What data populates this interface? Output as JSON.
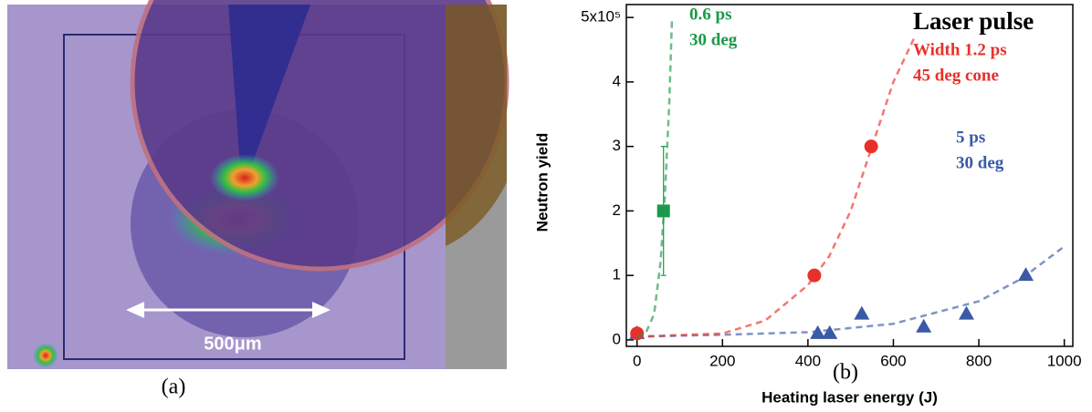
{
  "panel_a": {
    "scale_label": "500μm",
    "caption": "(a)"
  },
  "chart_data": {
    "type": "scatter",
    "title": "Laser pulse",
    "panel_label": "(b)",
    "x_label": "Heating laser energy (J)",
    "y_label": "Neutron yield",
    "xlim": [
      -25,
      1020
    ],
    "ylim": [
      -0.1,
      5.2
    ],
    "xticks": [
      0,
      200,
      400,
      600,
      800,
      1000
    ],
    "yticks": [
      0,
      1,
      2,
      3,
      4,
      {
        "value": 5,
        "label": "5x10⁵"
      }
    ],
    "series": [
      {
        "label": [
          "0.6 ps",
          "30 deg"
        ],
        "color": "#1a9a4a",
        "marker": "square",
        "x": [
          62
        ],
        "values": [
          2
        ],
        "errors": [
          1
        ],
        "fit_x": [
          0,
          20,
          40,
          55,
          65,
          75,
          82
        ],
        "fit_values": [
          0.05,
          0.1,
          0.4,
          1.2,
          2.2,
          3.6,
          5.0
        ]
      },
      {
        "label": [
          "Width 1.2 ps",
          "45 deg cone"
        ],
        "color": "#e8302a",
        "marker": "circle",
        "x": [
          0,
          415,
          548
        ],
        "values": [
          0.1,
          1.0,
          3.0
        ],
        "fit_x": [
          0,
          200,
          300,
          400,
          450,
          500,
          550,
          600,
          650
        ],
        "fit_values": [
          0.05,
          0.1,
          0.3,
          0.85,
          1.3,
          2.0,
          3.0,
          4.0,
          4.7
        ]
      },
      {
        "label": [
          "5 ps",
          "30 deg"
        ],
        "color": "#3a5aa8",
        "marker": "triangle",
        "x": [
          0,
          423,
          451,
          526,
          671,
          771,
          910
        ],
        "values": [
          0.1,
          0.1,
          0.1,
          0.4,
          0.2,
          0.4,
          1.0
        ],
        "fit_x": [
          0,
          200,
          400,
          600,
          800,
          900,
          1000
        ],
        "fit_values": [
          0.05,
          0.08,
          0.12,
          0.25,
          0.6,
          0.95,
          1.45
        ]
      }
    ]
  }
}
